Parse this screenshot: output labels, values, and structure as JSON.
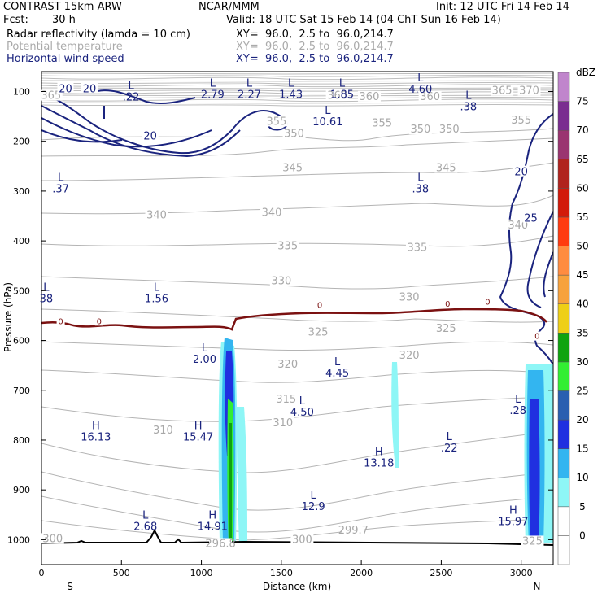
{
  "header": {
    "model": "CONTRAST 15km ARW",
    "org": "NCAR/MMM",
    "init": "Init: 12 UTC Fri 14 Feb 14",
    "fcst_label": "Fcst:",
    "fcst_value": "30 h",
    "valid": "Valid: 18 UTC Sat 15 Feb 14 (04 ChT Sun 16 Feb 14)",
    "fields": [
      {
        "name": "Radar reflectivity (lamda = 10 cm)",
        "xy": "XY=  96.0,  2.5 to  96.0,214.7",
        "color": "#000000"
      },
      {
        "name": "Potential temperature",
        "xy": "XY=  96.0,  2.5 to  96.0,214.7",
        "color": "#aaaaaa"
      },
      {
        "name": "Horizontal wind speed",
        "xy": "XY=  96.0,  2.5 to  96.0,214.7",
        "color": "#1a237e"
      }
    ]
  },
  "chart_data": {
    "type": "cross-section",
    "xlabel": "Distance (km)",
    "ylabel": "Pressure (hPa)",
    "xlim": [
      0,
      3200
    ],
    "ylim": [
      1050,
      60
    ],
    "x_ticks": [
      0,
      500,
      1000,
      1500,
      2000,
      2500,
      3000
    ],
    "y_ticks": [
      100,
      200,
      300,
      400,
      500,
      600,
      700,
      800,
      900,
      1000
    ],
    "end_labels": {
      "left": "S",
      "right": "N"
    },
    "colorbar": {
      "unit": "dBZ",
      "levels": [
        0,
        5,
        10,
        15,
        20,
        25,
        30,
        35,
        40,
        45,
        50,
        55,
        60,
        65,
        70,
        75
      ],
      "colors": [
        "#ffffff",
        "#ffffff",
        "#8ef6f6",
        "#33b5f0",
        "#2030e0",
        "#2a5fb0",
        "#33ee33",
        "#0fa30f",
        "#eecf17",
        "#f7a23c",
        "#ff8c40",
        "#ff3b10",
        "#d21a0a",
        "#b0241e",
        "#9a3570",
        "#7a2d90",
        "#c085cc"
      ]
    },
    "theta_labels": [
      {
        "text": "365",
        "x": 60,
        "p": 110
      },
      {
        "text": "360",
        "x": 1850,
        "p": 110
      },
      {
        "text": "360",
        "x": 2050,
        "p": 112
      },
      {
        "text": "360",
        "x": 2430,
        "p": 112
      },
      {
        "text": "365",
        "x": 2880,
        "p": 100
      },
      {
        "text": "370",
        "x": 3050,
        "p": 100
      },
      {
        "text": "355",
        "x": 1470,
        "p": 162
      },
      {
        "text": "355",
        "x": 2130,
        "p": 165
      },
      {
        "text": "355",
        "x": 3000,
        "p": 160
      },
      {
        "text": "350",
        "x": 1580,
        "p": 187
      },
      {
        "text": "350",
        "x": 2370,
        "p": 178
      },
      {
        "text": "350",
        "x": 2550,
        "p": 178
      },
      {
        "text": "345",
        "x": 1570,
        "p": 255
      },
      {
        "text": "345",
        "x": 2530,
        "p": 255
      },
      {
        "text": "340",
        "x": 720,
        "p": 350
      },
      {
        "text": "340",
        "x": 1440,
        "p": 345
      },
      {
        "text": "340",
        "x": 2980,
        "p": 370
      },
      {
        "text": "335",
        "x": 1540,
        "p": 412
      },
      {
        "text": "335",
        "x": 2350,
        "p": 415
      },
      {
        "text": "330",
        "x": 1500,
        "p": 482
      },
      {
        "text": "330",
        "x": 2300,
        "p": 515
      },
      {
        "text": "325",
        "x": 1730,
        "p": 585
      },
      {
        "text": "325",
        "x": 2530,
        "p": 578
      },
      {
        "text": "320",
        "x": 1540,
        "p": 650
      },
      {
        "text": "320",
        "x": 2300,
        "p": 632
      },
      {
        "text": "315",
        "x": 1530,
        "p": 720
      },
      {
        "text": "310",
        "x": 760,
        "p": 782
      },
      {
        "text": "310",
        "x": 1510,
        "p": 767
      },
      {
        "text": "300",
        "x": 70,
        "p": 1000
      },
      {
        "text": "300",
        "x": 1630,
        "p": 1002
      },
      {
        "text": "296.8",
        "x": 1120,
        "p": 1010
      },
      {
        "text": "299.7",
        "x": 1950,
        "p": 983
      },
      {
        "text": "325",
        "x": 3070,
        "p": 1005
      }
    ],
    "wind_labels": [
      {
        "text": "20",
        "x": 150,
        "p": 95
      },
      {
        "text": "20",
        "x": 300,
        "p": 95
      },
      {
        "text": "20",
        "x": 680,
        "p": 190
      },
      {
        "text": "20",
        "x": 3000,
        "p": 262
      },
      {
        "text": "25",
        "x": 3060,
        "p": 355
      }
    ],
    "freezing_labels": [
      {
        "text": "0",
        "x": 120,
        "p": 562
      },
      {
        "text": "0",
        "x": 360,
        "p": 562
      },
      {
        "text": "0",
        "x": 1740,
        "p": 530
      },
      {
        "text": "0",
        "x": 2540,
        "p": 527
      },
      {
        "text": "0",
        "x": 2790,
        "p": 523
      },
      {
        "text": "0",
        "x": 3100,
        "p": 592
      }
    ],
    "extrema": [
      {
        "kind": "L",
        "value": ".22",
        "x": 560,
        "p": 95
      },
      {
        "kind": "L",
        "value": "2.79",
        "x": 1070,
        "p": 90
      },
      {
        "kind": "L",
        "value": "2.27",
        "x": 1300,
        "p": 90
      },
      {
        "kind": "L",
        "value": "1.43",
        "x": 1560,
        "p": 90
      },
      {
        "kind": "L",
        "value": "1.85",
        "x": 1880,
        "p": 90
      },
      {
        "kind": "L",
        "value": "4.60",
        "x": 2370,
        "p": 80
      },
      {
        "kind": "L",
        "value": ".38",
        "x": 2670,
        "p": 115
      },
      {
        "kind": "L",
        "value": "10.61",
        "x": 1790,
        "p": 145
      },
      {
        "kind": "L",
        "value": ".37",
        "x": 120,
        "p": 280
      },
      {
        "kind": "L",
        "value": ".38",
        "x": 2370,
        "p": 280
      },
      {
        "kind": "L",
        "value": "1.56",
        "x": 720,
        "p": 500
      },
      {
        "kind": "L",
        "value": "38",
        "x": 30,
        "p": 500
      },
      {
        "kind": "L",
        "value": "2.00",
        "x": 1020,
        "p": 622
      },
      {
        "kind": "L",
        "value": "4.45",
        "x": 1850,
        "p": 650
      },
      {
        "kind": "L",
        "value": "4.50",
        "x": 1630,
        "p": 728
      },
      {
        "kind": "H",
        "value": "16.13",
        "x": 340,
        "p": 778
      },
      {
        "kind": "H",
        "value": "15.47",
        "x": 980,
        "p": 778
      },
      {
        "kind": "L",
        "value": ".22",
        "x": 2550,
        "p": 800
      },
      {
        "kind": "H",
        "value": "13.18",
        "x": 2110,
        "p": 830
      },
      {
        "kind": "L",
        "value": ".28",
        "x": 2980,
        "p": 725
      },
      {
        "kind": "L",
        "value": "12.9",
        "x": 1700,
        "p": 918
      },
      {
        "kind": "H",
        "value": "15.97",
        "x": 2950,
        "p": 948
      },
      {
        "kind": "L",
        "value": "2.68",
        "x": 650,
        "p": 958
      },
      {
        "kind": "H",
        "value": "14.91",
        "x": 1070,
        "p": 958
      }
    ]
  }
}
